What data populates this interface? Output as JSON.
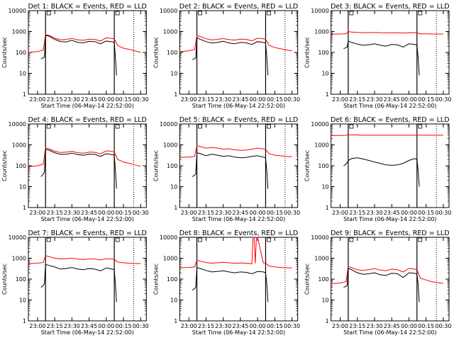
{
  "style": {
    "events_color": "#000000",
    "lld_color": "#ff0000"
  },
  "shared": {
    "xlabel": "Start Time (06-May-14 22:52:00)",
    "ylabel": "Counts/sec",
    "x_ticks": [
      "23:00",
      "23:15",
      "23:30",
      "23:45",
      "00:00",
      "00:15",
      "00:30"
    ],
    "y_ticks": [
      "1",
      "10",
      "100",
      "1000",
      "10000"
    ],
    "ylim": [
      1,
      10000
    ],
    "y_scale": "log"
  },
  "chart_data": [
    {
      "type": "line",
      "title": "Det 1: BLACK = Events, RED = LLD",
      "xlim": [
        "22:52",
        "00:35"
      ],
      "markers": [
        "23:07",
        "00:07"
      ],
      "dotted_markers": [
        "00:24"
      ],
      "series": [
        {
          "key": "events",
          "x": [
            "23:03",
            "23:05",
            "23:06",
            "23:07",
            "23:10",
            "23:15",
            "23:20",
            "23:25",
            "23:30",
            "23:35",
            "23:40",
            "23:45",
            "23:50",
            "23:55",
            "00:00",
            "00:05",
            "00:07",
            "00:08",
            "00:09"
          ],
          "values": [
            50,
            55,
            60,
            650,
            600,
            420,
            330,
            320,
            380,
            300,
            290,
            340,
            330,
            260,
            350,
            320,
            300,
            60,
            8
          ]
        },
        {
          "key": "lld",
          "x": [
            "22:52",
            "23:00",
            "23:05",
            "23:07",
            "23:10",
            "23:15",
            "23:20",
            "23:25",
            "23:30",
            "23:35",
            "23:40",
            "23:45",
            "23:50",
            "23:55",
            "00:00",
            "00:05",
            "00:07",
            "00:10",
            "00:15",
            "00:20",
            "00:25",
            "00:30"
          ],
          "values": [
            100,
            110,
            130,
            700,
            650,
            480,
            400,
            420,
            470,
            400,
            380,
            430,
            420,
            350,
            500,
            470,
            450,
            210,
            160,
            140,
            120,
            100
          ]
        }
      ]
    },
    {
      "type": "line",
      "title": "Det 2: BLACK = Events, RED = LLD",
      "xlim": [
        "22:52",
        "00:35"
      ],
      "markers": [
        "23:07",
        "00:07"
      ],
      "dotted_markers": [
        "00:24"
      ],
      "series": [
        {
          "key": "events",
          "x": [
            "23:03",
            "23:05",
            "23:06",
            "23:07",
            "23:10",
            "23:15",
            "23:20",
            "23:25",
            "23:30",
            "23:35",
            "23:40",
            "23:45",
            "23:50",
            "23:55",
            "00:00",
            "00:05",
            "00:07",
            "00:08",
            "00:09"
          ],
          "values": [
            45,
            50,
            55,
            500,
            420,
            330,
            280,
            300,
            340,
            280,
            260,
            300,
            290,
            240,
            330,
            300,
            280,
            60,
            8
          ]
        },
        {
          "key": "lld",
          "x": [
            "22:52",
            "23:00",
            "23:05",
            "23:07",
            "23:10",
            "23:15",
            "23:20",
            "23:25",
            "23:30",
            "23:35",
            "23:40",
            "23:45",
            "23:50",
            "23:55",
            "00:00",
            "00:05",
            "00:07",
            "00:10",
            "00:15",
            "00:20",
            "00:25",
            "00:30"
          ],
          "values": [
            110,
            120,
            140,
            620,
            580,
            450,
            400,
            420,
            460,
            410,
            390,
            430,
            420,
            360,
            480,
            450,
            430,
            220,
            170,
            150,
            130,
            120
          ]
        }
      ]
    },
    {
      "type": "line",
      "title": "Det 3: BLACK = Events, RED = LLD",
      "xlim": [
        "22:52",
        "00:35"
      ],
      "markers": [
        "23:07",
        "00:07"
      ],
      "dotted_markers": [
        "00:24"
      ],
      "series": [
        {
          "key": "events",
          "x": [
            "23:03",
            "23:05",
            "23:06",
            "23:07",
            "23:10",
            "23:15",
            "23:20",
            "23:25",
            "23:30",
            "23:35",
            "23:40",
            "23:45",
            "23:50",
            "23:55",
            "00:00",
            "00:05",
            "00:07",
            "00:08",
            "00:09"
          ],
          "values": [
            150,
            170,
            180,
            350,
            300,
            250,
            220,
            230,
            260,
            220,
            200,
            240,
            230,
            180,
            260,
            240,
            220,
            60,
            8
          ]
        },
        {
          "key": "lld",
          "x": [
            "22:52",
            "23:00",
            "23:05",
            "23:07",
            "23:10",
            "23:15",
            "23:20",
            "23:25",
            "23:30",
            "23:35",
            "23:40",
            "23:45",
            "23:50",
            "23:55",
            "00:00",
            "00:05",
            "00:07",
            "00:10",
            "00:15",
            "00:20",
            "00:25",
            "00:30"
          ],
          "values": [
            750,
            760,
            770,
            1000,
            950,
            900,
            880,
            880,
            900,
            870,
            860,
            880,
            870,
            840,
            880,
            870,
            860,
            780,
            770,
            760,
            760,
            760
          ]
        }
      ]
    },
    {
      "type": "line",
      "title": "Det 4: BLACK = Events, RED = LLD",
      "xlim": [
        "22:52",
        "00:35"
      ],
      "markers": [
        "23:07",
        "00:07"
      ],
      "dotted_markers": [
        "00:24"
      ],
      "series": [
        {
          "key": "events",
          "x": [
            "23:03",
            "23:05",
            "23:06",
            "23:07",
            "23:10",
            "23:15",
            "23:20",
            "23:25",
            "23:30",
            "23:35",
            "23:40",
            "23:45",
            "23:50",
            "23:55",
            "00:00",
            "00:05",
            "00:07",
            "00:08",
            "00:09"
          ],
          "values": [
            30,
            40,
            50,
            600,
            560,
            420,
            350,
            360,
            400,
            340,
            320,
            360,
            350,
            280,
            380,
            340,
            320,
            60,
            8
          ]
        },
        {
          "key": "lld",
          "x": [
            "22:52",
            "23:00",
            "23:05",
            "23:07",
            "23:10",
            "23:15",
            "23:20",
            "23:25",
            "23:30",
            "23:35",
            "23:40",
            "23:45",
            "23:50",
            "23:55",
            "00:00",
            "00:05",
            "00:07",
            "00:10",
            "00:15",
            "00:20",
            "00:25",
            "00:30"
          ],
          "values": [
            90,
            100,
            120,
            700,
            650,
            500,
            430,
            450,
            490,
            420,
            400,
            450,
            440,
            370,
            520,
            480,
            460,
            200,
            150,
            130,
            110,
            95
          ]
        }
      ]
    },
    {
      "type": "line",
      "title": "Det 5: BLACK = Events, RED = LLD",
      "xlim": [
        "22:52",
        "00:35"
      ],
      "markers": [
        "23:07",
        "00:07"
      ],
      "dotted_markers": [
        "00:24"
      ],
      "series": [
        {
          "key": "events",
          "x": [
            "23:03",
            "23:05",
            "23:06",
            "23:07",
            "23:10",
            "23:15",
            "23:20",
            "23:25",
            "23:30",
            "23:35",
            "23:40",
            "23:45",
            "23:50",
            "23:55",
            "00:00",
            "00:05",
            "00:07",
            "00:08",
            "00:09"
          ],
          "values": [
            30,
            35,
            40,
            420,
            380,
            300,
            360,
            320,
            280,
            300,
            260,
            240,
            250,
            280,
            300,
            260,
            240,
            60,
            8
          ]
        },
        {
          "key": "lld",
          "x": [
            "22:52",
            "23:00",
            "23:05",
            "23:07",
            "23:10",
            "23:15",
            "23:20",
            "23:25",
            "23:30",
            "23:35",
            "23:40",
            "23:45",
            "23:50",
            "23:55",
            "00:00",
            "00:05",
            "00:07",
            "00:10",
            "00:15",
            "00:20",
            "00:25",
            "00:30"
          ],
          "values": [
            250,
            260,
            280,
            900,
            820,
            700,
            750,
            700,
            620,
            650,
            580,
            550,
            560,
            620,
            700,
            640,
            600,
            380,
            320,
            300,
            280,
            270
          ]
        }
      ]
    },
    {
      "type": "line",
      "title": "Det 6: BLACK = Events, RED = LLD",
      "xlim": [
        "22:52",
        "00:35"
      ],
      "markers": [
        "23:07",
        "00:07"
      ],
      "dotted_markers": [
        "00:24"
      ],
      "series": [
        {
          "key": "events",
          "x": [
            "23:03",
            "23:05",
            "23:06",
            "23:07",
            "23:10",
            "23:15",
            "23:20",
            "23:25",
            "23:30",
            "23:35",
            "23:40",
            "23:45",
            "23:50",
            "23:55",
            "00:00",
            "00:05",
            "00:07",
            "00:08",
            "00:09"
          ],
          "values": [
            100,
            120,
            140,
            180,
            220,
            240,
            210,
            180,
            150,
            130,
            110,
            105,
            110,
            130,
            180,
            220,
            200,
            60,
            10
          ]
        },
        {
          "key": "lld",
          "x": [
            "22:52",
            "23:00",
            "23:05",
            "23:07",
            "23:10",
            "23:15",
            "23:20",
            "23:25",
            "23:30",
            "23:35",
            "23:40",
            "23:45",
            "23:50",
            "23:55",
            "00:00",
            "00:05",
            "00:07",
            "00:10",
            "00:15",
            "00:20",
            "00:25",
            "00:30"
          ],
          "values": [
            2800,
            2800,
            2850,
            3000,
            3000,
            2950,
            2900,
            2900,
            2900,
            2900,
            2900,
            2900,
            2900,
            2900,
            2900,
            2900,
            2900,
            2900,
            2900,
            2900,
            2900,
            2900
          ]
        }
      ]
    },
    {
      "type": "line",
      "title": "Det 7: BLACK = Events, RED = LLD",
      "xlim": [
        "22:52",
        "00:35"
      ],
      "markers": [
        "23:07",
        "00:07"
      ],
      "dotted_markers": [
        "00:24"
      ],
      "series": [
        {
          "key": "events",
          "x": [
            "23:03",
            "23:05",
            "23:06",
            "23:07",
            "23:10",
            "23:15",
            "23:20",
            "23:25",
            "23:30",
            "23:35",
            "23:40",
            "23:45",
            "23:50",
            "23:55",
            "00:00",
            "00:05",
            "00:07",
            "00:08",
            "00:09"
          ],
          "values": [
            40,
            50,
            60,
            500,
            450,
            380,
            300,
            320,
            360,
            300,
            280,
            320,
            300,
            250,
            340,
            300,
            280,
            60,
            8
          ]
        },
        {
          "key": "lld",
          "x": [
            "22:52",
            "23:00",
            "23:05",
            "23:07",
            "23:10",
            "23:15",
            "23:20",
            "23:25",
            "23:30",
            "23:35",
            "23:40",
            "23:45",
            "23:50",
            "23:55",
            "00:00",
            "00:05",
            "00:07",
            "00:10",
            "00:15",
            "00:20",
            "00:25",
            "00:30"
          ],
          "values": [
            550,
            580,
            620,
            1300,
            1200,
            1000,
            920,
            950,
            1000,
            900,
            860,
            920,
            900,
            820,
            950,
            900,
            880,
            650,
            600,
            580,
            560,
            550
          ]
        }
      ]
    },
    {
      "type": "line",
      "title": "Det 8: BLACK = Events, RED = LLD",
      "xlim": [
        "22:52",
        "00:35"
      ],
      "markers": [
        "23:07",
        "00:07"
      ],
      "dotted_markers": [
        "00:24"
      ],
      "series": [
        {
          "key": "events",
          "x": [
            "23:03",
            "23:05",
            "23:06",
            "23:07",
            "23:10",
            "23:15",
            "23:20",
            "23:25",
            "23:30",
            "23:35",
            "23:40",
            "23:45",
            "23:50",
            "23:55",
            "00:00",
            "00:05",
            "00:07",
            "00:08",
            "00:09"
          ],
          "values": [
            30,
            35,
            40,
            350,
            320,
            260,
            220,
            230,
            250,
            220,
            200,
            220,
            210,
            180,
            230,
            220,
            200,
            60,
            8
          ]
        },
        {
          "key": "lld",
          "x": [
            "22:52",
            "23:00",
            "23:05",
            "23:07",
            "23:10",
            "23:15",
            "23:20",
            "23:25",
            "23:30",
            "23:35",
            "23:40",
            "23:45",
            "23:50",
            "23:55",
            "23:56",
            "23:57",
            "23:58",
            "23:59",
            "00:00",
            "00:05",
            "00:07",
            "00:10",
            "00:15",
            "00:20",
            "00:25",
            "00:30"
          ],
          "values": [
            350,
            360,
            380,
            800,
            720,
            620,
            580,
            600,
            640,
            600,
            570,
            590,
            580,
            540,
            10000,
            10000,
            560,
            10000,
            10000,
            600,
            580,
            420,
            380,
            360,
            350,
            340
          ]
        }
      ]
    },
    {
      "type": "line",
      "title": "Det 9: BLACK = Events, RED = LLD",
      "xlim": [
        "22:52",
        "00:35"
      ],
      "markers": [
        "23:07",
        "00:07"
      ],
      "dotted_markers": [
        "00:24"
      ],
      "series": [
        {
          "key": "events",
          "x": [
            "23:03",
            "23:05",
            "23:06",
            "23:07",
            "23:10",
            "23:15",
            "23:20",
            "23:25",
            "23:30",
            "23:35",
            "23:40",
            "23:45",
            "23:50",
            "23:55",
            "00:00",
            "00:05",
            "00:07",
            "00:08",
            "00:09"
          ],
          "values": [
            40,
            45,
            50,
            330,
            280,
            200,
            170,
            180,
            200,
            160,
            150,
            190,
            180,
            120,
            200,
            190,
            170,
            60,
            8
          ]
        },
        {
          "key": "lld",
          "x": [
            "22:52",
            "23:00",
            "23:05",
            "23:07",
            "23:10",
            "23:15",
            "23:20",
            "23:25",
            "23:30",
            "23:35",
            "23:40",
            "23:45",
            "23:50",
            "23:55",
            "00:00",
            "00:05",
            "00:07",
            "00:10",
            "00:15",
            "00:20",
            "00:25",
            "00:30"
          ],
          "values": [
            60,
            65,
            75,
            400,
            350,
            280,
            260,
            280,
            320,
            270,
            250,
            300,
            280,
            220,
            320,
            300,
            280,
            110,
            90,
            75,
            68,
            62
          ]
        }
      ]
    }
  ]
}
